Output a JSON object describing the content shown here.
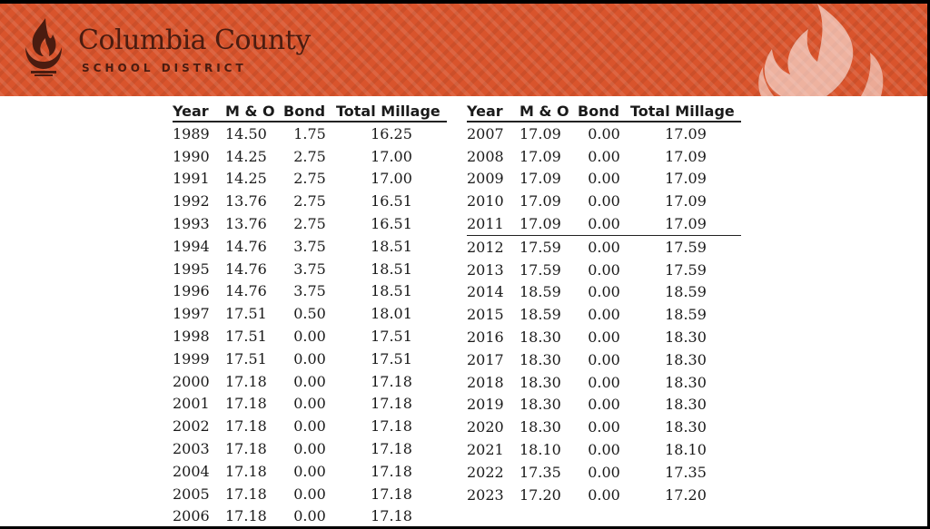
{
  "header": {
    "title": "Columbia County",
    "subtitle": "SCHOOL DISTRICT",
    "brand_color": "#d9542c",
    "text_color": "#4a1c10"
  },
  "columns": [
    "Year",
    "M & O",
    "Bond",
    "Total Millage"
  ],
  "left_table": [
    [
      "1989",
      "14.50",
      "1.75",
      "16.25"
    ],
    [
      "1990",
      "14.25",
      "2.75",
      "17.00"
    ],
    [
      "1991",
      "14.25",
      "2.75",
      "17.00"
    ],
    [
      "1992",
      "13.76",
      "2.75",
      "16.51"
    ],
    [
      "1993",
      "13.76",
      "2.75",
      "16.51"
    ],
    [
      "1994",
      "14.76",
      "3.75",
      "18.51"
    ],
    [
      "1995",
      "14.76",
      "3.75",
      "18.51"
    ],
    [
      "1996",
      "14.76",
      "3.75",
      "18.51"
    ],
    [
      "1997",
      "17.51",
      "0.50",
      "18.01"
    ],
    [
      "1998",
      "17.51",
      "0.00",
      "17.51"
    ],
    [
      "1999",
      "17.51",
      "0.00",
      "17.51"
    ],
    [
      "2000",
      "17.18",
      "0.00",
      "17.18"
    ],
    [
      "2001",
      "17.18",
      "0.00",
      "17.18"
    ],
    [
      "2002",
      "17.18",
      "0.00",
      "17.18"
    ],
    [
      "2003",
      "17.18",
      "0.00",
      "17.18"
    ],
    [
      "2004",
      "17.18",
      "0.00",
      "17.18"
    ],
    [
      "2005",
      "17.18",
      "0.00",
      "17.18"
    ],
    [
      "2006",
      "17.18",
      "0.00",
      "17.18"
    ]
  ],
  "right_table": [
    [
      "2007",
      "17.09",
      "0.00",
      "17.09"
    ],
    [
      "2008",
      "17.09",
      "0.00",
      "17.09"
    ],
    [
      "2009",
      "17.09",
      "0.00",
      "17.09"
    ],
    [
      "2010",
      "17.09",
      "0.00",
      "17.09"
    ],
    [
      "2011",
      "17.09",
      "0.00",
      "17.09"
    ],
    [
      "2012",
      "17.59",
      "0.00",
      "17.59"
    ],
    [
      "2013",
      "17.59",
      "0.00",
      "17.59"
    ],
    [
      "2014",
      "18.59",
      "0.00",
      "18.59"
    ],
    [
      "2015",
      "18.59",
      "0.00",
      "18.59"
    ],
    [
      "2016",
      "18.30",
      "0.00",
      "18.30"
    ],
    [
      "2017",
      "18.30",
      "0.00",
      "18.30"
    ],
    [
      "2018",
      "18.30",
      "0.00",
      "18.30"
    ],
    [
      "2019",
      "18.30",
      "0.00",
      "18.30"
    ],
    [
      "2020",
      "18.30",
      "0.00",
      "18.30"
    ],
    [
      "2021",
      "18.10",
      "0.00",
      "18.10"
    ],
    [
      "2022",
      "17.35",
      "0.00",
      "17.35"
    ],
    [
      "2023",
      "17.20",
      "0.00",
      "17.20"
    ]
  ],
  "right_table_separator_after_year": "2011"
}
